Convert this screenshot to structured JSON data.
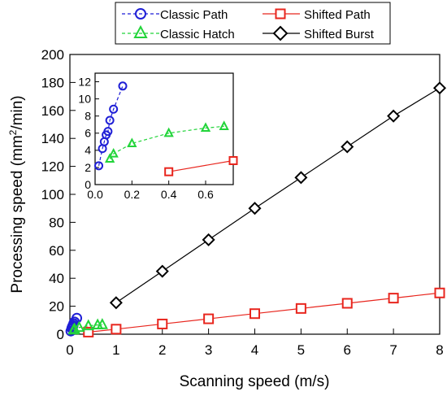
{
  "chart_data": [
    {
      "type": "line",
      "xlabel": "Scanning speed (m/s)",
      "ylabel_main": "Processing speed (mm",
      "ylabel_sup": "2",
      "ylabel_tail": "/min)",
      "xlim": [
        0,
        8
      ],
      "ylim": [
        0,
        200
      ],
      "xticks": [
        0,
        1,
        2,
        3,
        4,
        5,
        6,
        7,
        8
      ],
      "yticks": [
        0,
        20,
        40,
        60,
        80,
        100,
        120,
        140,
        160,
        180,
        200
      ],
      "grid": false,
      "legend_position": "top",
      "series": [
        {
          "name": "Classic Path",
          "marker": "circle",
          "color": "#1f1fd6",
          "x": [
            0.02,
            0.04,
            0.05,
            0.06,
            0.07,
            0.08,
            0.1,
            0.15
          ],
          "y": [
            2.2,
            4.2,
            5.0,
            5.8,
            6.2,
            7.5,
            8.8,
            11.5
          ]
        },
        {
          "name": "Shifted Path",
          "marker": "square",
          "color": "#e8261e",
          "x": [
            0.4,
            1,
            2,
            3,
            4,
            5,
            6,
            7,
            8
          ],
          "y": [
            1.5,
            3.6,
            7.3,
            11,
            14.7,
            18.4,
            22.1,
            25.8,
            29.5
          ]
        },
        {
          "name": "Classic Hatch",
          "marker": "triangle",
          "color": "#22d43a",
          "x": [
            0.08,
            0.1,
            0.2,
            0.4,
            0.6,
            0.7
          ],
          "y": [
            3.0,
            3.6,
            4.8,
            6.0,
            6.6,
            6.8
          ]
        },
        {
          "name": "Shifted Burst",
          "marker": "diamond",
          "color": "#000000",
          "x": [
            1,
            2,
            3,
            4,
            5,
            6,
            7,
            8
          ],
          "y": [
            22.5,
            45,
            67.5,
            90,
            112,
            134,
            156,
            176
          ]
        }
      ]
    },
    {
      "type": "line",
      "xlim": [
        0,
        0.75
      ],
      "ylim": [
        0,
        13
      ],
      "xticks": [
        0.0,
        0.2,
        0.4,
        0.6
      ],
      "xtick_labels": [
        "0.0",
        "0.2",
        "0.4",
        "0.6"
      ],
      "yticks": [
        0,
        2,
        4,
        6,
        8,
        10,
        12
      ],
      "series": [
        {
          "name": "Classic Path",
          "marker": "circle",
          "color": "#1f1fd6",
          "x": [
            0.02,
            0.04,
            0.05,
            0.06,
            0.07,
            0.08,
            0.1,
            0.15
          ],
          "y": [
            2.2,
            4.2,
            5.0,
            5.8,
            6.2,
            7.5,
            8.8,
            11.5
          ]
        },
        {
          "name": "Classic Hatch",
          "marker": "triangle",
          "color": "#22d43a",
          "x": [
            0.08,
            0.1,
            0.2,
            0.4,
            0.6,
            0.7
          ],
          "y": [
            3.0,
            3.6,
            4.8,
            6.0,
            6.6,
            6.8
          ]
        },
        {
          "name": "Shifted Path",
          "marker": "square",
          "color": "#e8261e",
          "x": [
            0.4,
            0.75
          ],
          "y": [
            1.5,
            2.8
          ]
        }
      ]
    }
  ]
}
